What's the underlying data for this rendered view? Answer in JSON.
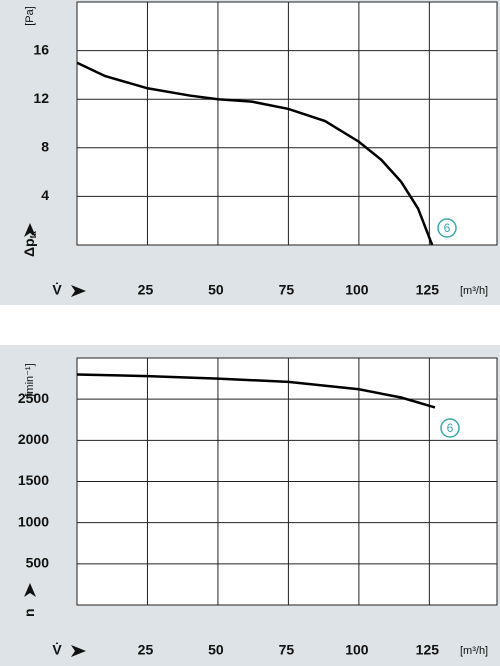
{
  "chart_data": [
    {
      "type": "line",
      "ylabel": "Δp",
      "ylabel_sub": "fa",
      "yunit": "[Pa]",
      "xlabel": "V̇",
      "xunit": "[m³/h]",
      "xlim": [
        0,
        149
      ],
      "xticks": [
        25,
        50,
        75,
        100,
        125
      ],
      "ylim": [
        0,
        20
      ],
      "yticks": [
        4,
        8,
        12,
        16
      ],
      "grid": true,
      "series": [
        {
          "name": "6",
          "color": "#000000",
          "x": [
            0,
            10,
            25,
            40,
            50,
            62,
            75,
            88,
            100,
            108,
            115,
            121,
            126
          ],
          "values": [
            15,
            13.9,
            12.9,
            12.3,
            12.0,
            11.8,
            11.2,
            10.2,
            8.5,
            7.0,
            5.2,
            3.0,
            0
          ]
        }
      ]
    },
    {
      "type": "line",
      "ylabel": "n",
      "yunit": "[min⁻¹]",
      "xlabel": "V̇",
      "xunit": "[m³/h]",
      "xlim": [
        0,
        149
      ],
      "xticks": [
        25,
        50,
        75,
        100,
        125
      ],
      "ylim": [
        0,
        3000
      ],
      "yticks": [
        500,
        1000,
        1500,
        2000,
        2500
      ],
      "grid": true,
      "series": [
        {
          "name": "6",
          "color": "#000000",
          "x": [
            0,
            25,
            50,
            75,
            100,
            115,
            127
          ],
          "values": [
            2800,
            2780,
            2750,
            2710,
            2620,
            2520,
            2400
          ]
        }
      ]
    }
  ]
}
